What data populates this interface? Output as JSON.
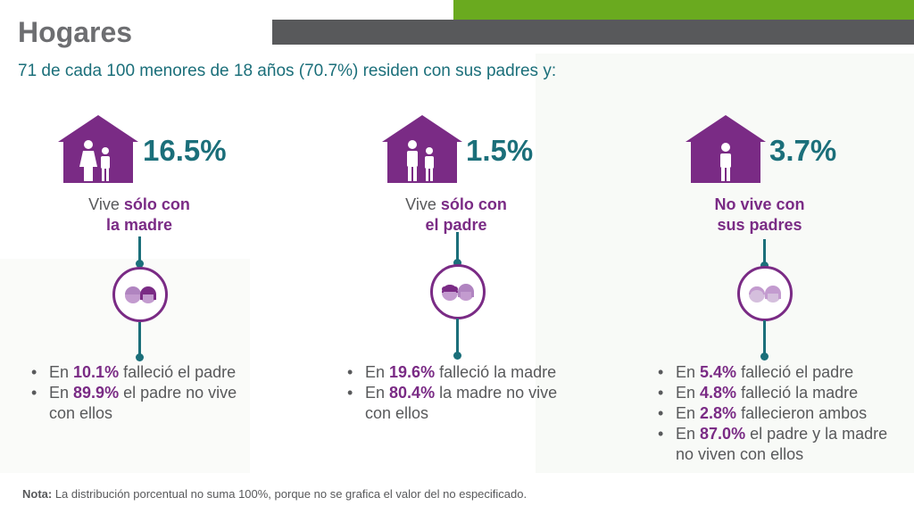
{
  "header": {
    "title": "Hogares",
    "subtitle": "71 de cada 100 menores de 18 años (70.7%) residen con sus padres y:"
  },
  "columns": [
    {
      "percent": "16.5%",
      "caption_pre": "Vive ",
      "caption_bold1": "sólo con",
      "caption_bold2": "la madre",
      "house_icon": "house-mother-child-icon",
      "face_icon": "mother-child-faces-icon",
      "items": [
        {
          "pre": "En ",
          "value": "10.1%",
          "post": " falleció el padre"
        },
        {
          "pre": "En ",
          "value": "89.9%",
          "post": " el padre no vive con ellos"
        }
      ]
    },
    {
      "percent": "1.5%",
      "caption_pre": "Vive ",
      "caption_bold1": "sólo con",
      "caption_bold2": "el padre",
      "house_icon": "house-father-child-icon",
      "face_icon": "father-child-faces-icon",
      "items": [
        {
          "pre": "En ",
          "value": "19.6%",
          "post": " falleció la madre"
        },
        {
          "pre": "En ",
          "value": "80.4%",
          "post": " la madre no vive con ellos"
        }
      ]
    },
    {
      "percent": "3.7%",
      "caption_pre": "",
      "caption_bold1": "No vive con",
      "caption_bold2": "sus padres",
      "house_icon": "house-child-icon",
      "face_icon": "parents-faces-icon",
      "items": [
        {
          "pre": "En ",
          "value": "5.4%",
          "post": " falleció el padre"
        },
        {
          "pre": "En ",
          "value": "4.8%",
          "post": " falleció la madre"
        },
        {
          "pre": "En ",
          "value": "2.8%",
          "post": " fallecieron ambos"
        },
        {
          "pre": "En ",
          "value": "87.0%",
          "post": " el padre y la madre no viven con ellos"
        }
      ]
    }
  ],
  "footer": {
    "note_label": "Nota:",
    "note_text": " La distribución porcentual no suma 100%, porque no se grafica el valor del no especificado."
  },
  "colors": {
    "purple": "#7a2b85",
    "teal": "#1b6f7a",
    "green": "#6aaa1f",
    "gray": "#58595b"
  }
}
